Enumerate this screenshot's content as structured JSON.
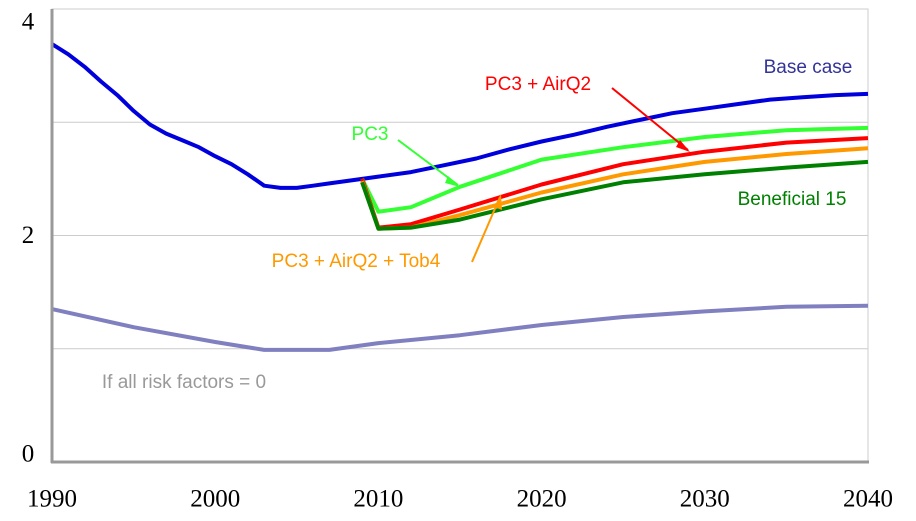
{
  "chart_data": {
    "type": "line",
    "xlim": [
      1990,
      2040
    ],
    "xticks": [
      1990,
      2000,
      2010,
      2020,
      2030,
      2040
    ],
    "ylim": [
      0,
      4
    ],
    "yticks": [
      0,
      2,
      4
    ],
    "ygrid": [
      1,
      2,
      3,
      4
    ],
    "series": [
      {
        "name": "Base case",
        "color": "#0000dd",
        "x": [
          1990,
          1991,
          1992,
          1993,
          1994,
          1995,
          1996,
          1997,
          1998,
          1999,
          2000,
          2001,
          2002,
          2003,
          2004,
          2005,
          2006,
          2007,
          2008,
          2009,
          2010,
          2012,
          2014,
          2016,
          2018,
          2020,
          2022,
          2024,
          2026,
          2028,
          2030,
          2032,
          2034,
          2036,
          2038,
          2040
        ],
        "values": [
          3.69,
          3.6,
          3.49,
          3.36,
          3.24,
          3.1,
          2.98,
          2.9,
          2.84,
          2.78,
          2.7,
          2.63,
          2.54,
          2.44,
          2.42,
          2.42,
          2.44,
          2.46,
          2.48,
          2.5,
          2.52,
          2.56,
          2.62,
          2.68,
          2.76,
          2.83,
          2.89,
          2.96,
          3.02,
          3.08,
          3.12,
          3.16,
          3.2,
          3.22,
          3.24,
          3.25
        ]
      },
      {
        "name": "PC3",
        "color": "#33ff33",
        "x": [
          2009,
          2010,
          2012,
          2015,
          2020,
          2025,
          2030,
          2035,
          2040
        ],
        "values": [
          2.5,
          2.21,
          2.25,
          2.43,
          2.67,
          2.78,
          2.87,
          2.93,
          2.95
        ]
      },
      {
        "name": "PC3 + AirQ2",
        "color": "#ff0000",
        "x": [
          2009,
          2010,
          2012,
          2015,
          2020,
          2025,
          2030,
          2035,
          2040
        ],
        "values": [
          2.5,
          2.07,
          2.1,
          2.23,
          2.45,
          2.63,
          2.74,
          2.82,
          2.86
        ]
      },
      {
        "name": "PC3 + AirQ2 + Tob4",
        "color": "#ff9900",
        "x": [
          2009,
          2010,
          2012,
          2015,
          2020,
          2025,
          2030,
          2035,
          2040
        ],
        "values": [
          2.48,
          2.06,
          2.07,
          2.18,
          2.38,
          2.54,
          2.65,
          2.72,
          2.77
        ]
      },
      {
        "name": "Beneficial 15",
        "color": "#008000",
        "x": [
          2009,
          2010,
          2012,
          2015,
          2020,
          2025,
          2030,
          2035,
          2040
        ],
        "values": [
          2.47,
          2.06,
          2.07,
          2.14,
          2.32,
          2.47,
          2.54,
          2.6,
          2.65
        ]
      },
      {
        "name": "If all risk factors = 0",
        "color": "#8080c0",
        "x": [
          1990,
          1995,
          2000,
          2003,
          2007,
          2010,
          2015,
          2020,
          2025,
          2030,
          2035,
          2040
        ],
        "values": [
          1.35,
          1.19,
          1.06,
          0.99,
          0.99,
          1.05,
          1.12,
          1.21,
          1.28,
          1.33,
          1.37,
          1.38
        ]
      }
    ]
  }
}
